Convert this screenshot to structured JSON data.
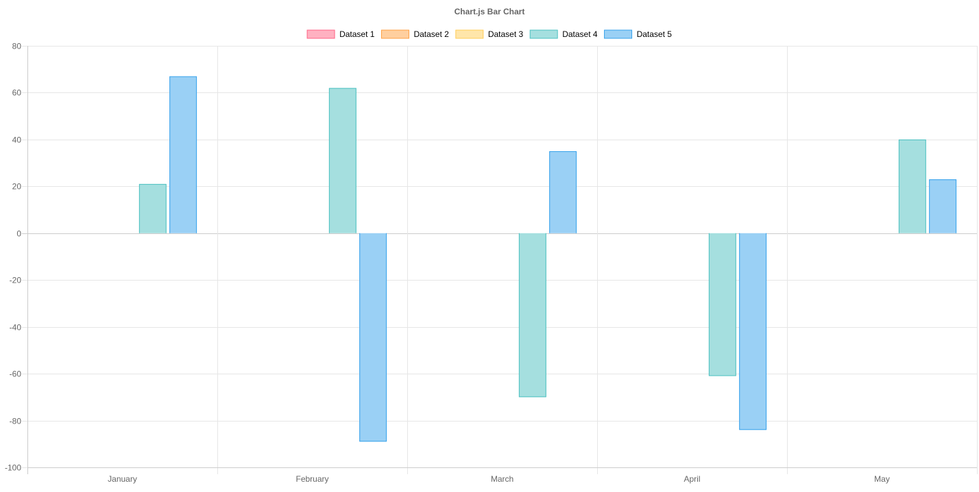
{
  "chart_data": {
    "type": "bar",
    "title": "Chart.js Bar Chart",
    "categories": [
      "January",
      "February",
      "March",
      "April",
      "May"
    ],
    "ylim": [
      -100,
      80
    ],
    "yticks": [
      80,
      60,
      40,
      20,
      0,
      -20,
      -40,
      -60,
      -80,
      -100
    ],
    "grid": true,
    "legend_position": "top",
    "series": [
      {
        "name": "Dataset 1",
        "fill": "#ffb1c1",
        "stroke": "#ff6384",
        "values": [
          null,
          null,
          null,
          null,
          null
        ]
      },
      {
        "name": "Dataset 2",
        "fill": "#ffcf9f",
        "stroke": "#ff9f40",
        "values": [
          null,
          null,
          null,
          null,
          null
        ]
      },
      {
        "name": "Dataset 3",
        "fill": "#ffe6aa",
        "stroke": "#ffcd56",
        "values": [
          null,
          null,
          null,
          null,
          null
        ]
      },
      {
        "name": "Dataset 4",
        "fill": "#a5dfdf",
        "stroke": "#4bc0c0",
        "values": [
          21,
          62,
          -70,
          -61,
          40
        ]
      },
      {
        "name": "Dataset 5",
        "fill": "#9ad0f5",
        "stroke": "#36a2eb",
        "values": [
          67,
          -89,
          35,
          -84,
          23
        ]
      }
    ]
  }
}
